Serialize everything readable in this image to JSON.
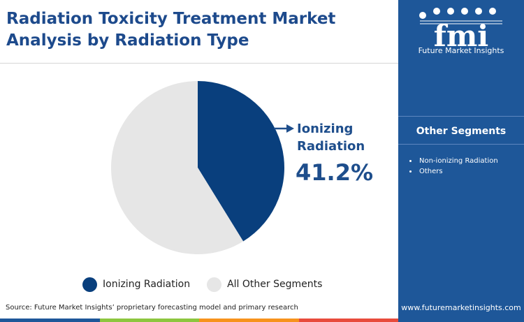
{
  "title": {
    "line1": "Radiation Toxicity Treatment Market",
    "line2": "Analysis by Radiation Type"
  },
  "callout": {
    "label_line1": "Ionizing",
    "label_line2": "Radiation",
    "value": "41.2%"
  },
  "source": "Source: Future Market Insights’ proprietary forecasting model and primary research",
  "sidebar": {
    "logo_text": "fmi",
    "logo_subtitle": "Future Market Insights",
    "segments_heading": "Other Segments",
    "segments": [
      "Non-ionizing Radiation",
      "Others"
    ],
    "website": "www.futuremarketinsights.com"
  },
  "colors": {
    "brand_blue": "#1e5799",
    "title_blue": "#1d4a8c",
    "bottom_bar": [
      "#1e5799",
      "#8dc63f",
      "#f7931d",
      "#e84b3c"
    ]
  },
  "chart_data": {
    "type": "pie",
    "title": "Radiation Toxicity Treatment Market Analysis by Radiation Type",
    "categories": [
      "Ionizing Radiation",
      "All Other Segments"
    ],
    "values": [
      41.2,
      58.8
    ],
    "unit": "%",
    "colors": [
      "#093f7d",
      "#e6e6e6"
    ],
    "start_angle_deg": 0,
    "direction": "clockwise",
    "legend_position": "bottom"
  }
}
